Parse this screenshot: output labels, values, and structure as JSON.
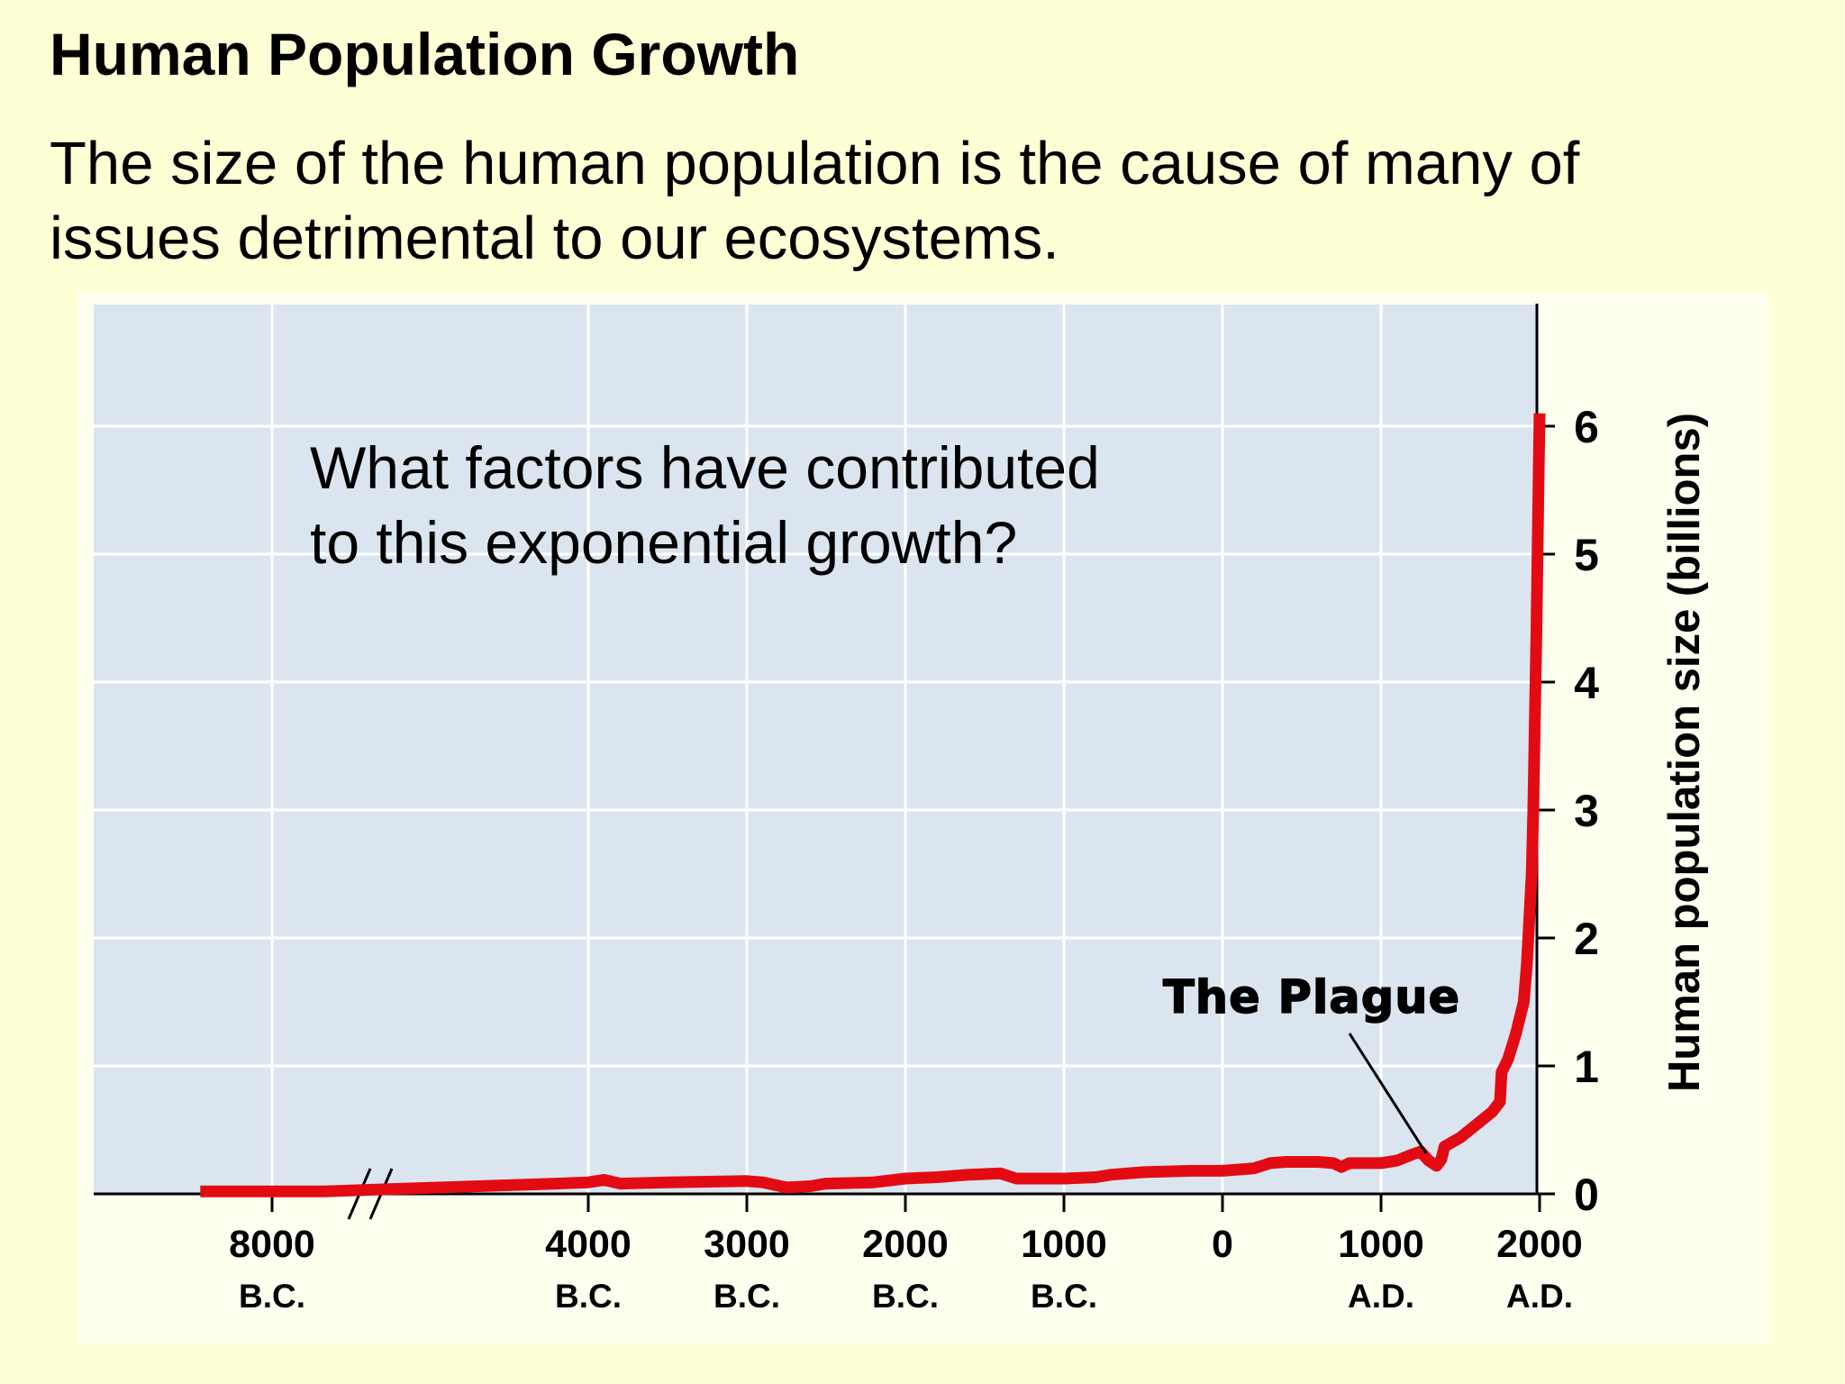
{
  "slide": {
    "title": "Human Population Growth",
    "body_line1": "The size of the human population is the cause of many of",
    "body_line2": "issues detrimental to our ecosystems."
  },
  "chart_data": {
    "type": "line",
    "annotation": "What factors have contributed to this exponential growth?",
    "annotation_line1": "What factors have contributed",
    "annotation_line2": "to this exponential growth?",
    "ylabel": "Human population size (billions)",
    "ylim": [
      0,
      6.5
    ],
    "y_ticks": [
      0,
      1,
      2,
      3,
      4,
      5,
      6
    ],
    "x_ticks": [
      {
        "value": -8000,
        "line1": "8000",
        "line2": "B.C."
      },
      {
        "value": -4000,
        "line1": "4000",
        "line2": "B.C."
      },
      {
        "value": -3000,
        "line1": "3000",
        "line2": "B.C."
      },
      {
        "value": -2000,
        "line1": "2000",
        "line2": "B.C."
      },
      {
        "value": -1000,
        "line1": "1000",
        "line2": "B.C."
      },
      {
        "value": 0,
        "line1": "0",
        "line2": ""
      },
      {
        "value": 1000,
        "line1": "1000",
        "line2": "A.D."
      },
      {
        "value": 2000,
        "line1": "2000",
        "line2": "A.D."
      }
    ],
    "axis_break": "between 8000 B.C. and 4000 B.C.",
    "plague_label": "The Plague",
    "grid": true,
    "line_color": "#e30b13",
    "plot_bg": "#dbe5ef",
    "grid_color": "#ffffff",
    "series": [
      {
        "points": [
          [
            -9100,
            0.02
          ],
          [
            -7500,
            0.02
          ],
          [
            -7200,
            0.02
          ],
          [
            -6000,
            0.04
          ],
          [
            -4200,
            0.08
          ],
          [
            -4000,
            0.09
          ],
          [
            -3900,
            0.11
          ],
          [
            -3800,
            0.08
          ],
          [
            -3500,
            0.09
          ],
          [
            -3000,
            0.1
          ],
          [
            -2900,
            0.09
          ],
          [
            -2750,
            0.05
          ],
          [
            -2600,
            0.06
          ],
          [
            -2500,
            0.08
          ],
          [
            -2200,
            0.09
          ],
          [
            -2000,
            0.12
          ],
          [
            -1800,
            0.13
          ],
          [
            -1600,
            0.15
          ],
          [
            -1400,
            0.16
          ],
          [
            -1300,
            0.12
          ],
          [
            -1000,
            0.12
          ],
          [
            -800,
            0.13
          ],
          [
            -700,
            0.15
          ],
          [
            -500,
            0.17
          ],
          [
            -200,
            0.18
          ],
          [
            0,
            0.18
          ],
          [
            200,
            0.2
          ],
          [
            300,
            0.24
          ],
          [
            400,
            0.25
          ],
          [
            600,
            0.25
          ],
          [
            700,
            0.24
          ],
          [
            750,
            0.21
          ],
          [
            800,
            0.24
          ],
          [
            1000,
            0.24
          ],
          [
            1100,
            0.26
          ],
          [
            1200,
            0.31
          ],
          [
            1250,
            0.33
          ],
          [
            1300,
            0.26
          ],
          [
            1350,
            0.22
          ],
          [
            1380,
            0.27
          ],
          [
            1400,
            0.37
          ],
          [
            1500,
            0.44
          ],
          [
            1600,
            0.54
          ],
          [
            1700,
            0.64
          ],
          [
            1750,
            0.72
          ],
          [
            1760,
            0.95
          ],
          [
            1800,
            1.05
          ],
          [
            1850,
            1.25
          ],
          [
            1900,
            1.5
          ],
          [
            1920,
            1.8
          ],
          [
            1950,
            2.5
          ],
          [
            1960,
            3.0
          ],
          [
            1970,
            3.7
          ],
          [
            1980,
            4.4
          ],
          [
            1987,
            5.0
          ],
          [
            1995,
            5.7
          ],
          [
            2000,
            6.1
          ]
        ]
      }
    ]
  }
}
